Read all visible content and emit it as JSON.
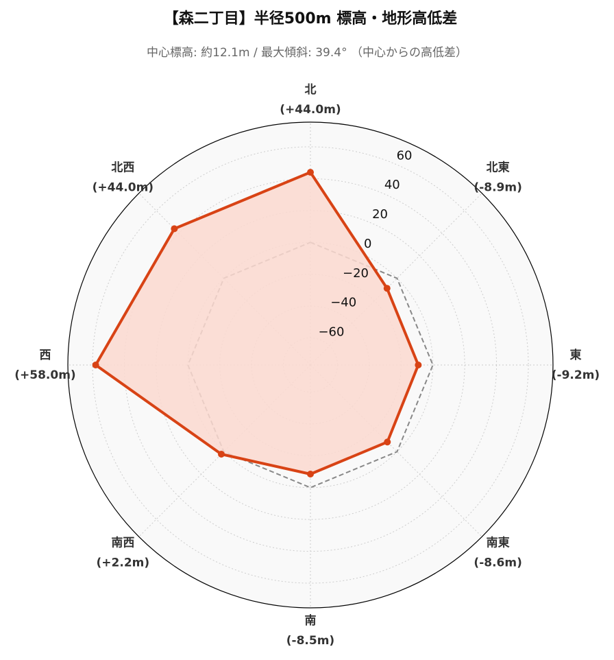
{
  "chart_data": {
    "type": "radar",
    "title": "【森二丁目】半径500m 標高・地形高低差",
    "subtitle": "中心標高: 約12.1m / 最大傾斜: 39.4° （中心からの高低差）",
    "categories": [
      "北",
      "北東",
      "東",
      "南東",
      "南",
      "南西",
      "西",
      "北西"
    ],
    "values": [
      44.0,
      -8.9,
      -9.2,
      -8.6,
      -8.5,
      2.2,
      58.0,
      44.0
    ],
    "value_labels": [
      "(+44.0m)",
      "(-8.9m)",
      "(-9.2m)",
      "(-8.6m)",
      "(-8.5m)",
      "(+2.2m)",
      "(+58.0m)",
      "(+44.0m)"
    ],
    "color": "#d84315",
    "fill_color": "#fbd9d0",
    "ylim": [
      -77,
      75.5
    ],
    "yticks": [
      {
        "value": -60,
        "label": "−60"
      },
      {
        "value": -40,
        "label": "−40"
      },
      {
        "value": -20,
        "label": "−20"
      },
      0,
      20,
      40,
      60
    ],
    "grid": true,
    "zero_line": true
  }
}
